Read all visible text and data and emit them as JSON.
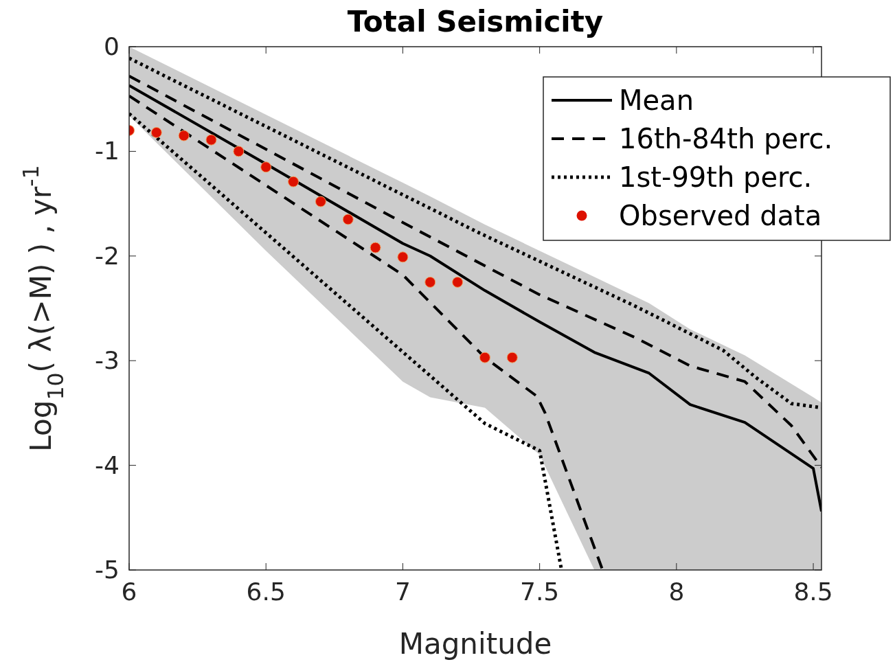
{
  "chart_data": {
    "type": "line",
    "title": "Total Seismicity",
    "xlabel": "Magnitude",
    "ylabel": "Log$_{10}$( λ(>M) ) , yr$^{-1}$",
    "xlim": [
      6,
      8.53
    ],
    "xticks": [
      6,
      6.5,
      7,
      7.5,
      8,
      8.5
    ],
    "ylim": [
      -5,
      0
    ],
    "yticks": [
      -5,
      -4,
      -3,
      -2,
      -1,
      0
    ],
    "grid": false,
    "legend": "top right",
    "series": [
      {
        "name": "Mean",
        "color": "#000000",
        "line_style": "solid",
        "x": [
          6,
          6.5,
          7,
          7.1,
          7.3,
          7.5,
          7.7,
          7.9,
          8.05,
          8.25,
          8.5,
          8.53
        ],
        "values": [
          -0.37,
          -1.12,
          -1.88,
          -2.0,
          -2.33,
          -2.63,
          -2.92,
          -3.12,
          -3.42,
          -3.59,
          -4.03,
          -4.44
        ],
        "lower": [
          -0.66,
          -1.95,
          -3.2,
          -3.35,
          -3.45,
          -3.9,
          -5,
          -5,
          -5,
          -5,
          -5,
          -5
        ],
        "upper": [
          0,
          -0.65,
          -1.3,
          -1.43,
          -1.7,
          -1.95,
          -2.2,
          -2.45,
          -2.7,
          -2.95,
          -3.35,
          -3.4
        ]
      },
      {
        "name": "16th-84th perc.",
        "color": "#000000",
        "line_style": "dashed",
        "x": [
          6,
          7,
          7.5,
          7.85,
          8.05,
          8.25,
          8.42,
          8.53
        ],
        "values": [
          -0.28,
          -1.68,
          -2.37,
          -2.78,
          -3.05,
          -3.2,
          -3.62,
          -4.02
        ]
      },
      {
        "color": "#000000",
        "line_style": "dashed",
        "x": [
          6,
          7,
          7.3,
          7.49,
          7.52,
          7.73
        ],
        "values": [
          -0.47,
          -2.18,
          -2.97,
          -3.34,
          -3.5,
          -5
        ]
      },
      {
        "name": "1st-99th perc.",
        "color": "#000000",
        "line_style": "dotted",
        "x": [
          6,
          7.28,
          7.85,
          8.17,
          8.29,
          8.42,
          8.53
        ],
        "values": [
          -0.11,
          -1.78,
          -2.48,
          -2.9,
          -3.16,
          -3.41,
          -3.45
        ]
      },
      {
        "color": "#000000",
        "line_style": "dotted",
        "x": [
          6,
          7.3,
          7.5,
          7.58
        ],
        "values": [
          -0.64,
          -3.6,
          -3.86,
          -5
        ]
      },
      {
        "name": "Observed data",
        "type": "scatter",
        "marker": "circle",
        "color": "#dd1100",
        "x": [
          6,
          6.1,
          6.2,
          6.3,
          6.4,
          6.5,
          6.6,
          6.7,
          6.8,
          6.9,
          7,
          7.1,
          7.2,
          7.3,
          7.4
        ],
        "values": [
          -0.8,
          -0.82,
          -0.85,
          -0.89,
          -1.0,
          -1.15,
          -1.29,
          -1.48,
          -1.65,
          -1.92,
          -2.01,
          -2.25,
          -2.25,
          -2.97,
          -2.97
        ]
      }
    ]
  }
}
